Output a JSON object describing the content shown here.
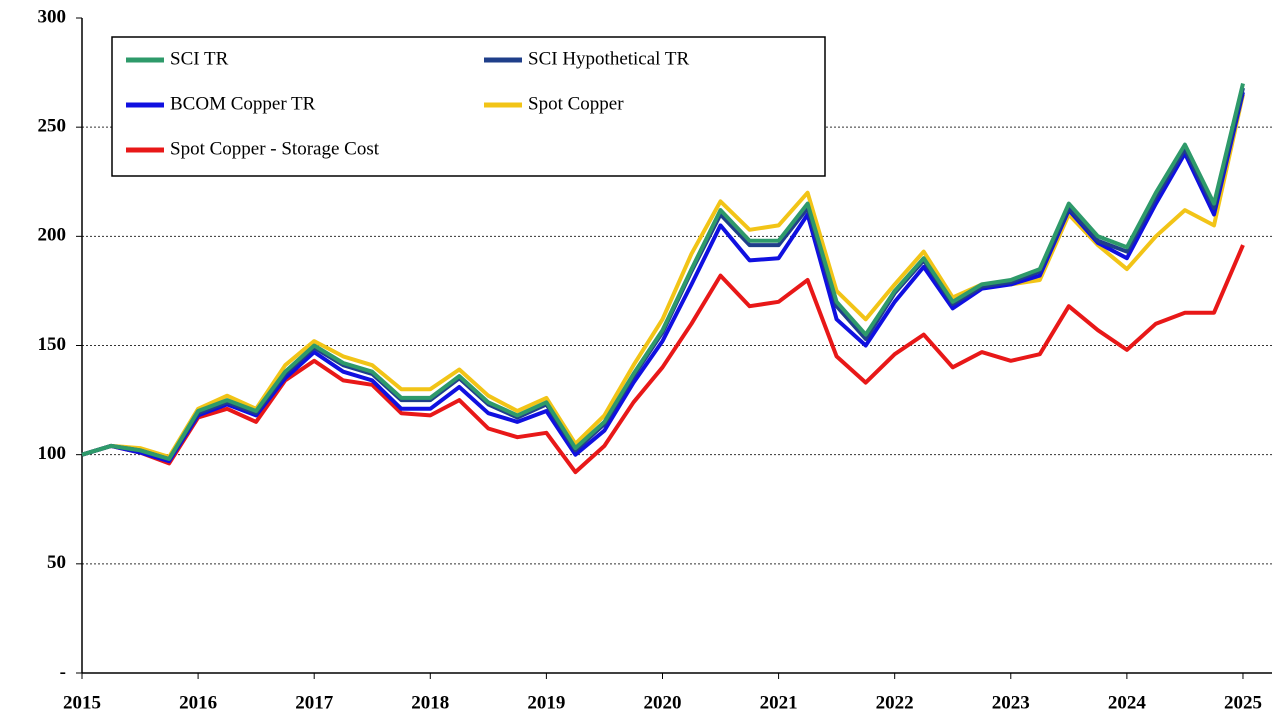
{
  "chart_data": {
    "type": "line",
    "x": [
      2015,
      2015.25,
      2015.5,
      2015.75,
      2016,
      2016.25,
      2016.5,
      2016.75,
      2017,
      2017.25,
      2017.5,
      2017.75,
      2018,
      2018.25,
      2018.5,
      2018.75,
      2019,
      2019.25,
      2019.5,
      2019.75,
      2020,
      2020.25,
      2020.5,
      2020.75,
      2021,
      2021.25,
      2021.5,
      2021.75,
      2022,
      2022.25,
      2022.5,
      2022.75,
      2023,
      2023.25,
      2023.5,
      2023.75,
      2024,
      2024.25,
      2024.5,
      2024.75,
      2025
    ],
    "series": [
      {
        "name": "SCI TR",
        "color": "#2e9a6a",
        "values": [
          100,
          104,
          102,
          98,
          120,
          125,
          120,
          138,
          150,
          142,
          138,
          126,
          126,
          136,
          124,
          118,
          124,
          103,
          115,
          137,
          157,
          185,
          212,
          198,
          198,
          215,
          170,
          155,
          175,
          190,
          170,
          178,
          180,
          185,
          215,
          200,
          195,
          220,
          242,
          215,
          270
        ]
      },
      {
        "name": "SCI Hypothetical TR",
        "color": "#1f3f8a",
        "values": [
          100,
          104,
          102,
          98,
          119,
          124,
          119,
          137,
          149,
          141,
          137,
          125,
          125,
          135,
          123,
          117,
          123,
          102,
          114,
          136,
          156,
          184,
          210,
          196,
          196,
          213,
          168,
          153,
          174,
          189,
          169,
          177,
          179,
          184,
          213,
          198,
          193,
          218,
          240,
          213,
          268
        ]
      },
      {
        "name": "BCOM Copper TR",
        "color": "#1010e0",
        "values": [
          100,
          104,
          101,
          97,
          118,
          123,
          118,
          135,
          147,
          138,
          134,
          121,
          121,
          131,
          119,
          115,
          120,
          100,
          111,
          133,
          152,
          178,
          205,
          189,
          190,
          210,
          162,
          150,
          170,
          186,
          167,
          176,
          178,
          182,
          212,
          197,
          190,
          215,
          238,
          210,
          266
        ]
      },
      {
        "name": "Spot Copper",
        "color": "#f2c417",
        "values": [
          100,
          104,
          103,
          99,
          121,
          127,
          121,
          141,
          152,
          145,
          141,
          130,
          130,
          139,
          127,
          120,
          126,
          105,
          118,
          141,
          162,
          192,
          216,
          203,
          205,
          220,
          175,
          162,
          178,
          193,
          172,
          178,
          178,
          180,
          210,
          196,
          185,
          200,
          212,
          205,
          265
        ]
      },
      {
        "name": "Spot Copper - Storage Cost",
        "color": "#e81818",
        "values": [
          100,
          104,
          101,
          96,
          117,
          121,
          115,
          134,
          143,
          134,
          132,
          119,
          118,
          125,
          112,
          108,
          110,
          92,
          104,
          124,
          140,
          160,
          182,
          168,
          170,
          180,
          145,
          133,
          146,
          155,
          140,
          147,
          143,
          146,
          168,
          157,
          148,
          160,
          165,
          165,
          196
        ]
      }
    ],
    "xlim": [
      2015,
      2025.25
    ],
    "xticks": [
      2015,
      2016,
      2017,
      2018,
      2019,
      2020,
      2021,
      2022,
      2023,
      2024,
      2025
    ],
    "ylim": [
      0,
      300
    ],
    "yticks": [
      {
        "value": 0,
        "label": "-"
      },
      50,
      100,
      150,
      200,
      250,
      300
    ],
    "grid": true,
    "legend": "upper left"
  }
}
